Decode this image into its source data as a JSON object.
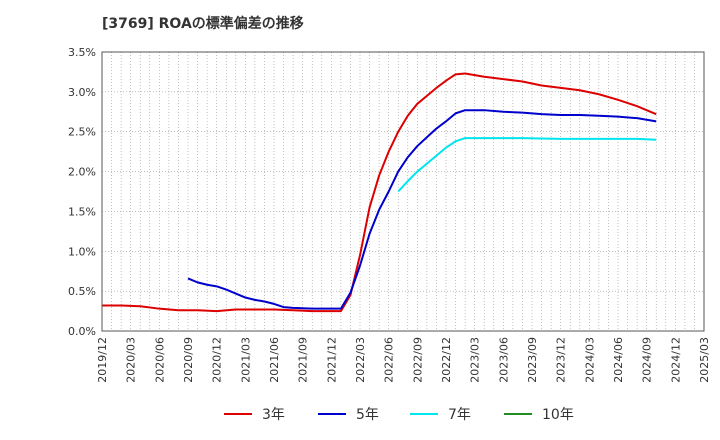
{
  "chart_data": {
    "type": "line",
    "title": "[3769]  ROAの標準偏差の推移",
    "xlabel": "",
    "ylabel": "",
    "ylim": [
      0,
      3.5
    ],
    "y_ticks": [
      "0.0%",
      "0.5%",
      "1.0%",
      "1.5%",
      "2.0%",
      "2.5%",
      "3.0%",
      "3.5%"
    ],
    "y_tick_values": [
      0,
      0.5,
      1.0,
      1.5,
      2.0,
      2.5,
      3.0,
      3.5
    ],
    "x_ticks": [
      "2019/12",
      "2020/03",
      "2020/06",
      "2020/09",
      "2020/12",
      "2021/03",
      "2021/06",
      "2021/09",
      "2021/12",
      "2022/03",
      "2022/06",
      "2022/09",
      "2022/12",
      "2023/03",
      "2023/06",
      "2023/09",
      "2023/12",
      "2024/03",
      "2024/06",
      "2024/09",
      "2024/12",
      "2025/03"
    ],
    "x_range_months": [
      0,
      63
    ],
    "grid": true,
    "legend_position": "bottom",
    "series": [
      {
        "name": "3年",
        "color": "#dd0000",
        "points": [
          [
            0,
            0.32
          ],
          [
            2,
            0.32
          ],
          [
            4,
            0.31
          ],
          [
            6,
            0.28
          ],
          [
            8,
            0.26
          ],
          [
            10,
            0.26
          ],
          [
            12,
            0.25
          ],
          [
            14,
            0.27
          ],
          [
            16,
            0.27
          ],
          [
            18,
            0.27
          ],
          [
            20,
            0.26
          ],
          [
            22,
            0.25
          ],
          [
            25,
            0.25
          ],
          [
            26,
            0.45
          ],
          [
            27,
            0.95
          ],
          [
            28,
            1.55
          ],
          [
            29,
            1.95
          ],
          [
            30,
            2.25
          ],
          [
            31,
            2.5
          ],
          [
            32,
            2.7
          ],
          [
            33,
            2.85
          ],
          [
            34,
            2.95
          ],
          [
            35,
            3.05
          ],
          [
            36,
            3.14
          ],
          [
            37,
            3.22
          ],
          [
            38,
            3.23
          ],
          [
            40,
            3.19
          ],
          [
            42,
            3.16
          ],
          [
            44,
            3.13
          ],
          [
            46,
            3.08
          ],
          [
            48,
            3.05
          ],
          [
            50,
            3.02
          ],
          [
            52,
            2.97
          ],
          [
            54,
            2.9
          ],
          [
            56,
            2.82
          ],
          [
            57,
            2.77
          ],
          [
            58,
            2.72
          ]
        ]
      },
      {
        "name": "5年",
        "color": "#0000cc",
        "points": [
          [
            9,
            0.66
          ],
          [
            10,
            0.61
          ],
          [
            11,
            0.58
          ],
          [
            12,
            0.56
          ],
          [
            13,
            0.52
          ],
          [
            14,
            0.47
          ],
          [
            15,
            0.42
          ],
          [
            16,
            0.39
          ],
          [
            17,
            0.37
          ],
          [
            18,
            0.34
          ],
          [
            19,
            0.3
          ],
          [
            20,
            0.29
          ],
          [
            22,
            0.28
          ],
          [
            25,
            0.28
          ],
          [
            26,
            0.48
          ],
          [
            27,
            0.82
          ],
          [
            28,
            1.22
          ],
          [
            29,
            1.52
          ],
          [
            30,
            1.75
          ],
          [
            31,
            2.0
          ],
          [
            32,
            2.18
          ],
          [
            33,
            2.32
          ],
          [
            34,
            2.43
          ],
          [
            35,
            2.54
          ],
          [
            36,
            2.63
          ],
          [
            37,
            2.73
          ],
          [
            38,
            2.77
          ],
          [
            40,
            2.77
          ],
          [
            42,
            2.75
          ],
          [
            44,
            2.74
          ],
          [
            46,
            2.72
          ],
          [
            48,
            2.71
          ],
          [
            50,
            2.71
          ],
          [
            52,
            2.7
          ],
          [
            54,
            2.69
          ],
          [
            56,
            2.67
          ],
          [
            57,
            2.65
          ],
          [
            58,
            2.63
          ]
        ]
      },
      {
        "name": "7年",
        "color": "#00e5ee",
        "points": [
          [
            31,
            1.75
          ],
          [
            32,
            1.88
          ],
          [
            33,
            2.0
          ],
          [
            34,
            2.1
          ],
          [
            35,
            2.2
          ],
          [
            36,
            2.3
          ],
          [
            37,
            2.38
          ],
          [
            38,
            2.42
          ],
          [
            40,
            2.42
          ],
          [
            44,
            2.42
          ],
          [
            48,
            2.41
          ],
          [
            52,
            2.41
          ],
          [
            56,
            2.41
          ],
          [
            58,
            2.4
          ]
        ]
      },
      {
        "name": "10年",
        "color": "#228b22",
        "points": []
      }
    ]
  }
}
